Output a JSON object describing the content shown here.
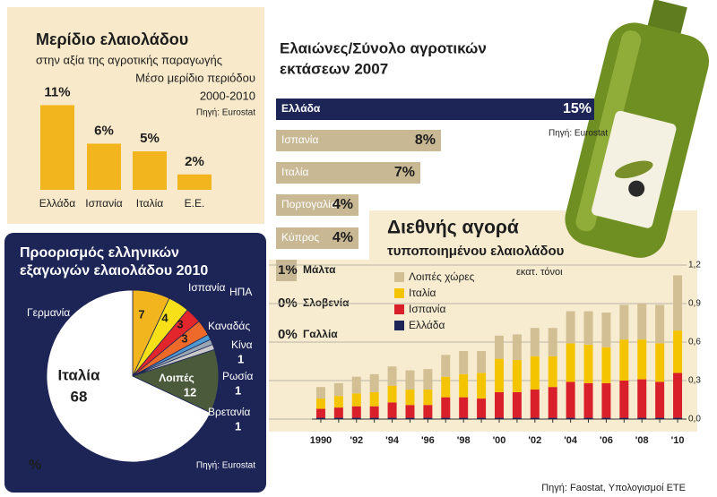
{
  "chart_data": [
    {
      "type": "bar",
      "title": "Μερίδιο ελαιολάδου",
      "subtitle": "στην αξία της αγροτικής παραγωγής",
      "notes": [
        "Μέσο μερίδιο περιόδου",
        "2000-2010"
      ],
      "source": "Πηγή: Eurostat",
      "categories": [
        "Ελλάδα",
        "Ισπανία",
        "Ιταλία",
        "Ε.Ε."
      ],
      "values": [
        11,
        6,
        5,
        2
      ],
      "value_labels": [
        "11%",
        "6%",
        "5%",
        "2%"
      ],
      "color": "#f2b51e"
    },
    {
      "type": "barh",
      "title": [
        "Ελαιώνες/Σύνολο αγροτικών",
        "εκτάσεων 2007"
      ],
      "source": "Πηγή: Eurostat",
      "categories": [
        "Ελλάδα",
        "Ισπανία",
        "Ιταλία",
        "Πορτογαλία",
        "Κύπρος",
        "Μάλτα",
        "Σλοβενία",
        "Γαλλία"
      ],
      "values": [
        15,
        8,
        7,
        4,
        4,
        1,
        0,
        0
      ],
      "value_labels": [
        "15%",
        "8%",
        "7%",
        "4%",
        "4%",
        "1%",
        "0%",
        "0%"
      ],
      "colors": [
        "#1d2556",
        "#c8b994",
        "#c8b994",
        "#c8b994",
        "#c8b994",
        "#c8b994",
        "#c8b994",
        "#c8b994"
      ]
    },
    {
      "type": "pie",
      "title": [
        "Προορισμός ελληνικών",
        "εξαγωγών ελαιολάδου 2010"
      ],
      "unit": "%",
      "source": "Πηγή: Eurostat",
      "categories": [
        "Γερμανία",
        "Ισπανία",
        "ΗΠΑ",
        "Καναδάς",
        "Κίνα",
        "Ρωσία",
        "Βρετανία",
        "Λοιπές",
        "Ιταλία"
      ],
      "values": [
        7,
        4,
        3,
        3,
        1,
        1,
        1,
        12,
        68
      ],
      "colors": [
        "#f2b51e",
        "#f7e017",
        "#e3262b",
        "#ee6a2b",
        "#4e9bd3",
        "#9aa7b4",
        "#c9c9c9",
        "#4b5a3a",
        "#ffffff"
      ]
    },
    {
      "type": "stacked_bar",
      "title": "Διεθνής αγορά",
      "subtitle": "τυποποιημένου ελαιολάδου",
      "unit_label": "εκατ. τόνοι",
      "source": "Πηγή: Faostat, Υπολογισμοί ΕΤΕ",
      "categories": [
        "1990",
        null,
        "'92",
        null,
        "'94",
        null,
        "'96",
        null,
        "'98",
        null,
        "'00",
        null,
        "'02",
        null,
        "'04",
        null,
        "'06",
        null,
        "'08",
        null,
        "'10"
      ],
      "series": [
        {
          "name": "Λοιπές χώρες",
          "color": "#d2bf94",
          "values": [
            0.09,
            0.1,
            0.13,
            0.14,
            0.15,
            0.15,
            0.16,
            0.17,
            0.18,
            0.17,
            0.18,
            0.2,
            0.22,
            0.22,
            0.25,
            0.26,
            0.27,
            0.27,
            0.28,
            0.3,
            0.43
          ]
        },
        {
          "name": "Ιταλία",
          "color": "#f5c400",
          "values": [
            0.08,
            0.09,
            0.1,
            0.11,
            0.13,
            0.12,
            0.12,
            0.16,
            0.18,
            0.2,
            0.26,
            0.25,
            0.26,
            0.24,
            0.3,
            0.3,
            0.28,
            0.32,
            0.31,
            0.3,
            0.33
          ]
        },
        {
          "name": "Ισπανία",
          "color": "#d81f2a",
          "values": [
            0.07,
            0.08,
            0.09,
            0.09,
            0.12,
            0.1,
            0.1,
            0.16,
            0.16,
            0.15,
            0.2,
            0.2,
            0.22,
            0.24,
            0.28,
            0.27,
            0.27,
            0.29,
            0.3,
            0.28,
            0.35
          ]
        },
        {
          "name": "Ελλάδα",
          "color": "#1d2556",
          "values": [
            0.01,
            0.01,
            0.01,
            0.01,
            0.01,
            0.01,
            0.01,
            0.01,
            0.01,
            0.01,
            0.01,
            0.01,
            0.01,
            0.01,
            0.01,
            0.01,
            0.01,
            0.01,
            0.01,
            0.01,
            0.01
          ]
        }
      ],
      "ylim": [
        0,
        1.2
      ],
      "yticks": [
        {
          "value": 0,
          "label": "0,0"
        },
        {
          "value": 0.3,
          "label": "0,3"
        },
        {
          "value": 0.6,
          "label": "0,6"
        },
        {
          "value": 0.9,
          "label": "0,9"
        },
        {
          "value": 1.2,
          "label": "1,2"
        }
      ],
      "grid": true
    }
  ]
}
